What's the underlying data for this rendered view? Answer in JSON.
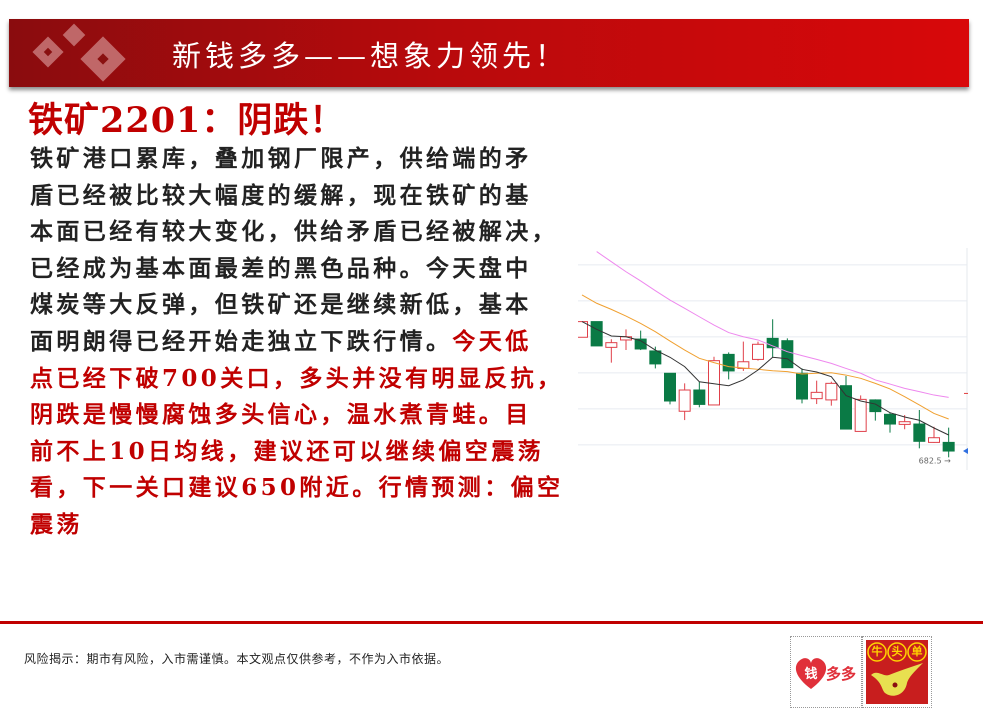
{
  "header": {
    "title": "新钱多多——想象力领先！"
  },
  "title": "铁矿2201：阴跌！",
  "body": {
    "lines_black": [
      "铁矿港口累库，叠加钢厂限产，供给端的矛",
      "盾已经被比较大幅度的缓解，现在铁矿的基",
      "本面已经有较大变化，供给矛盾已经被解决，",
      "已经成为基本面最差的黑色品种。今天盘中",
      "煤炭等大反弹，但铁矿还是继续新低，基本"
    ],
    "line6_black": "面明朗得已经开始走独立下跌行情。",
    "line6_red": "今天低",
    "lines_red": [
      "点已经下破700关口，多头并没有明显反抗，",
      "阴跌是慢慢腐蚀多头信心，温水煮青蛙。目",
      "前不上10日均线，建议还可以继续偏空震荡",
      "看，下一关口建议650附近。行情预测：偏空",
      "震荡"
    ]
  },
  "footer": {
    "disclaimer": "风险揭示：期市有风险，入市需谨慎。本文观点仅供参考，不作为入市依据。",
    "logo1_text": "钱多多",
    "logo2_text": "牛头单"
  },
  "colors": {
    "accent": "#c00000",
    "up": "#e0404a",
    "down": "#0a7a45",
    "ma5": "#333333",
    "ma10": "#f0a030",
    "ma20": "#ee88ee"
  },
  "chart_data": {
    "type": "candlestick",
    "low_label": "682.5",
    "candles": [
      [
        749.2,
        757.9,
        749.2,
        757.9
      ],
      [
        757.9,
        757.9,
        744.4,
        744.4
      ],
      [
        743.6,
        748.1,
        735.1,
        746.2
      ],
      [
        747.7,
        753.6,
        742.1,
        749.5
      ],
      [
        748.2,
        752.9,
        742.1,
        742.7
      ],
      [
        741.6,
        744.0,
        731.9,
        734.4
      ],
      [
        729.2,
        729.2,
        711.9,
        713.8
      ],
      [
        708.1,
        723.6,
        703.2,
        719.9
      ],
      [
        719.9,
        724.5,
        710.3,
        711.9
      ],
      [
        711.6,
        738.4,
        711.6,
        736.2
      ],
      [
        739.7,
        740.8,
        725.8,
        730.5
      ],
      [
        731.9,
        746.8,
        730.5,
        735.6
      ],
      [
        736.9,
        746.8,
        736.2,
        745.3
      ],
      [
        748.6,
        759.2,
        738.1,
        743.4
      ],
      [
        747.3,
        748.6,
        732.3,
        732.3
      ],
      [
        729.2,
        731.9,
        712.5,
        714.9
      ],
      [
        715.1,
        725.1,
        712.1,
        718.6
      ],
      [
        714.4,
        724.5,
        711.2,
        723.6
      ],
      [
        722.3,
        727.7,
        698.2,
        698.2
      ],
      [
        696.9,
        716.9,
        696.9,
        714.7
      ],
      [
        714.4,
        714.7,
        702.9,
        707.9
      ],
      [
        706.4,
        707.5,
        696.2,
        701.0
      ],
      [
        700.8,
        706.0,
        698.1,
        702.3
      ],
      [
        701.0,
        708.8,
        687.5,
        691.4
      ],
      [
        690.8,
        699.5,
        690.6,
        693.4
      ],
      [
        690.8,
        699.0,
        682.5,
        686.0
      ]
    ],
    "ma5": [
      757.9,
      753.6,
      749.9,
      749.5,
      747.3,
      742.1,
      738.1,
      732.9,
      724.5,
      723.4,
      722.3,
      725.5,
      731.0,
      738.1,
      737.3,
      731.4,
      729.9,
      727.3,
      716.8,
      713.8,
      712.1,
      707.3,
      704.9,
      703.1,
      698.8,
      694.9
    ],
    "ma10": [
      772.7,
      768.1,
      764.7,
      761.0,
      756.9,
      752.3,
      747.1,
      742.1,
      737.5,
      735.1,
      732.9,
      732.1,
      731.4,
      730.6,
      730.1,
      728.8,
      729.2,
      729.5,
      728.2,
      726.4,
      723.6,
      720.5,
      716.2,
      711.6,
      706.9,
      703.8
    ],
    "ma20": [
      null,
      796.8,
      791.2,
      785.6,
      780.5,
      775.1,
      769.9,
      765.3,
      760.6,
      756.0,
      751.8,
      749.5,
      747.7,
      744.4,
      741.2,
      739.0,
      736.9,
      734.7,
      731.9,
      729.2,
      725.5,
      723.2,
      720.8,
      719.0,
      717.1,
      715.8
    ],
    "gridlines": [
      689.4,
      709.4,
      729.4,
      749.4,
      769.4,
      789.4
    ],
    "grid": true
  }
}
